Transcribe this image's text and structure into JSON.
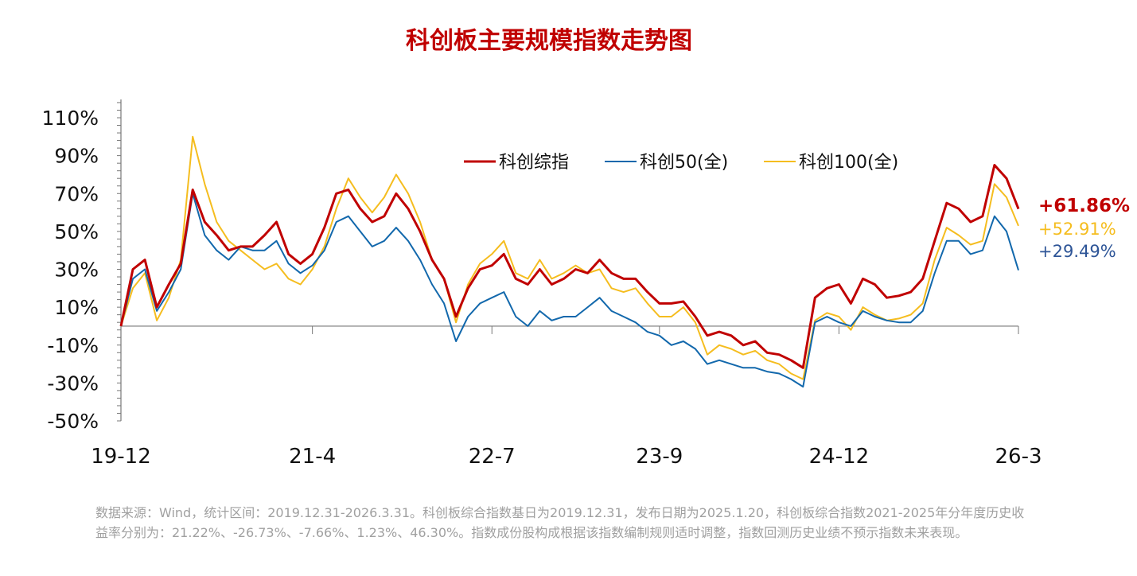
{
  "chart_data": {
    "type": "line",
    "title": "科创板主要规模指数走势图",
    "xlabel": "",
    "ylabel": "",
    "ylim": [
      -50,
      110
    ],
    "yticks": [
      "110%",
      "90%",
      "70%",
      "50%",
      "30%",
      "10%",
      "-10%",
      "-30%",
      "-50%"
    ],
    "ytick_values": [
      110,
      90,
      70,
      50,
      30,
      10,
      -10,
      -30,
      -50
    ],
    "xticks": [
      "19-12",
      "21-4",
      "22-7",
      "23-9",
      "24-12",
      "26-3"
    ],
    "xtick_dates": [
      "2019-12",
      "2021-04",
      "2022-07",
      "2023-09",
      "2024-12",
      "2026-03"
    ],
    "grid": false,
    "legend": "top-center",
    "x": [
      "2019-12",
      "2020-01",
      "2020-02",
      "2020-03",
      "2020-04",
      "2020-05",
      "2020-06",
      "2020-07",
      "2020-08",
      "2020-09",
      "2020-10",
      "2020-11",
      "2020-12",
      "2021-01",
      "2021-02",
      "2021-03",
      "2021-04",
      "2021-05",
      "2021-06",
      "2021-07",
      "2021-08",
      "2021-09",
      "2021-10",
      "2021-11",
      "2021-12",
      "2022-01",
      "2022-02",
      "2022-03",
      "2022-04",
      "2022-05",
      "2022-06",
      "2022-07",
      "2022-08",
      "2022-09",
      "2022-10",
      "2022-11",
      "2022-12",
      "2023-01",
      "2023-02",
      "2023-03",
      "2023-04",
      "2023-05",
      "2023-06",
      "2023-07",
      "2023-08",
      "2023-09",
      "2023-10",
      "2023-11",
      "2023-12",
      "2024-01",
      "2024-02",
      "2024-03",
      "2024-04",
      "2024-05",
      "2024-06",
      "2024-07",
      "2024-08",
      "2024-09",
      "2024-10",
      "2024-11",
      "2024-12",
      "2025-01",
      "2025-02",
      "2025-03",
      "2025-04",
      "2025-05",
      "2025-06",
      "2025-07",
      "2025-08",
      "2025-09",
      "2025-10",
      "2025-11",
      "2025-12",
      "2026-01",
      "2026-02",
      "2026-03"
    ],
    "series": [
      {
        "name": "科创综指",
        "color": "#C00000",
        "values": [
          0,
          30,
          35,
          10,
          22,
          33,
          72,
          55,
          48,
          40,
          42,
          42,
          48,
          55,
          38,
          33,
          38,
          52,
          70,
          72,
          62,
          55,
          58,
          70,
          62,
          50,
          35,
          25,
          5,
          20,
          30,
          32,
          38,
          25,
          22,
          30,
          22,
          25,
          30,
          28,
          35,
          28,
          25,
          25,
          18,
          12,
          12,
          13,
          5,
          -5,
          -3,
          -5,
          -10,
          -8,
          -14,
          -15,
          -18,
          -22,
          15,
          20,
          22,
          12,
          25,
          22,
          15,
          16,
          18,
          25,
          45,
          65,
          62,
          55,
          58,
          85,
          78,
          61.86
        ]
      },
      {
        "name": "科创50(全)",
        "color": "#1268AC",
        "values": [
          0,
          25,
          30,
          8,
          18,
          30,
          70,
          48,
          40,
          35,
          42,
          40,
          40,
          45,
          33,
          28,
          32,
          40,
          55,
          58,
          50,
          42,
          45,
          52,
          45,
          35,
          22,
          12,
          -8,
          5,
          12,
          15,
          18,
          5,
          0,
          8,
          3,
          5,
          5,
          10,
          15,
          8,
          5,
          2,
          -3,
          -5,
          -10,
          -8,
          -12,
          -20,
          -18,
          -20,
          -22,
          -22,
          -24,
          -25,
          -28,
          -32,
          2,
          5,
          2,
          0,
          8,
          5,
          3,
          2,
          2,
          8,
          28,
          45,
          45,
          38,
          40,
          58,
          50,
          29.49
        ]
      },
      {
        "name": "科创100(全)",
        "color": "#F5BD1F",
        "values": [
          0,
          20,
          28,
          3,
          15,
          35,
          100,
          75,
          55,
          45,
          40,
          35,
          30,
          33,
          25,
          22,
          30,
          42,
          62,
          78,
          68,
          60,
          68,
          80,
          70,
          55,
          35,
          25,
          2,
          22,
          33,
          38,
          45,
          28,
          25,
          35,
          25,
          28,
          32,
          28,
          30,
          20,
          18,
          20,
          12,
          5,
          5,
          10,
          2,
          -15,
          -10,
          -12,
          -15,
          -13,
          -18,
          -20,
          -25,
          -28,
          3,
          7,
          5,
          -2,
          10,
          6,
          3,
          4,
          6,
          12,
          35,
          52,
          48,
          43,
          45,
          75,
          68,
          52.91
        ]
      }
    ],
    "end_labels": [
      "+61.86%",
      "+52.91%",
      "+29.49%"
    ],
    "end_label_colors": [
      "#C00000",
      "#F5BD1F",
      "#2E5597"
    ]
  },
  "footnote": "数据来源：Wind，统计区间：2019.12.31-2026.3.31。科创板综合指数基日为2019.12.31，发布日期为2025.1.20，科创板综合指数2021-2025年分年度历史收益率分别为：21.22%、-26.73%、-7.66%、1.23%、46.30%。指数成份股构成根据该指数编制规则适时调整，指数回测历史业绩不预示指数未来表现。"
}
